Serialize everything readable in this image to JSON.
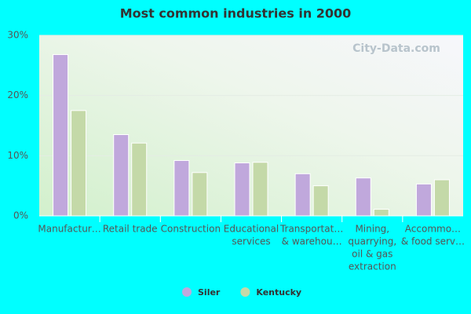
{
  "chart_data": {
    "type": "bar",
    "title": "Most common industries in 2000",
    "categories": [
      [
        "Manufactur…"
      ],
      [
        "Retail trade"
      ],
      [
        "Construction"
      ],
      [
        "Educational",
        "services"
      ],
      [
        "Transportat…",
        "& warehou…"
      ],
      [
        "Mining,",
        "quarrying,",
        "oil & gas",
        "extraction"
      ],
      [
        "Accommo…",
        "& food serv…"
      ]
    ],
    "series": [
      {
        "name": "Siler",
        "color": "#c0a8dc",
        "values": [
          26.8,
          13.5,
          9.2,
          8.8,
          7.0,
          6.3,
          5.3
        ]
      },
      {
        "name": "Kentucky",
        "color": "#c4d9a8",
        "values": [
          17.5,
          12.1,
          7.2,
          8.9,
          5.0,
          1.1,
          6.0
        ]
      }
    ],
    "ylim": [
      0,
      30
    ],
    "yticks": [
      {
        "value": 0,
        "label": "0%"
      },
      {
        "value": 10,
        "label": "10%"
      },
      {
        "value": 20,
        "label": "20%"
      },
      {
        "value": 30,
        "label": "30%"
      }
    ],
    "grid": true,
    "legend": "bottom",
    "watermark": "City-Data.com"
  }
}
